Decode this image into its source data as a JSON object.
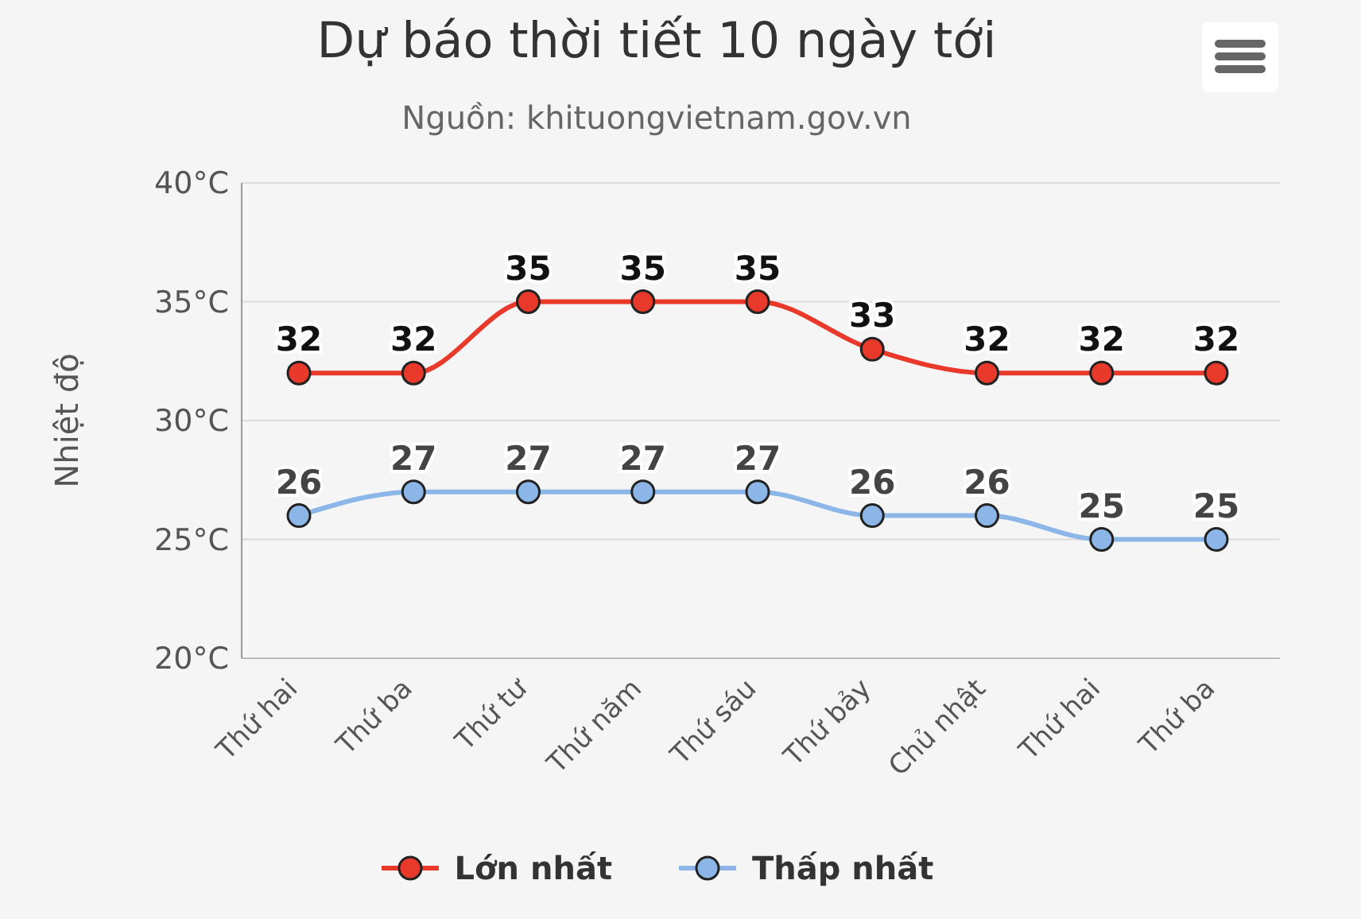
{
  "chart_data": {
    "type": "line",
    "title": "Dự báo thời tiết 10 ngày tới",
    "subtitle": "Nguồn: khituongvietnam.gov.vn",
    "ylabel": "Nhiệt độ",
    "categories": [
      "Thứ hai",
      "Thứ ba",
      "Thứ tư",
      "Thứ năm",
      "Thứ sáu",
      "Thứ bảy",
      "Chủ nhật",
      "Thứ hai",
      "Thứ ba"
    ],
    "series": [
      {
        "name": "Lớn nhất",
        "color": "#e8392b",
        "values": [
          32,
          32,
          35,
          35,
          35,
          33,
          32,
          32,
          32
        ]
      },
      {
        "name": "Thấp nhất",
        "color": "#8cb6e8",
        "values": [
          26,
          27,
          27,
          27,
          27,
          26,
          26,
          25,
          25
        ]
      }
    ],
    "ylim": [
      20,
      40
    ],
    "yticks": [
      {
        "value": 20,
        "label": "20°C"
      },
      {
        "value": 25,
        "label": "25°C"
      },
      {
        "value": 30,
        "label": "30°C"
      },
      {
        "value": 35,
        "label": "35°C"
      },
      {
        "value": 40,
        "label": "40°C"
      }
    ],
    "grid": "y",
    "legend": "bottom",
    "marker": "circle",
    "line_style": "solid",
    "data_labels": true
  }
}
